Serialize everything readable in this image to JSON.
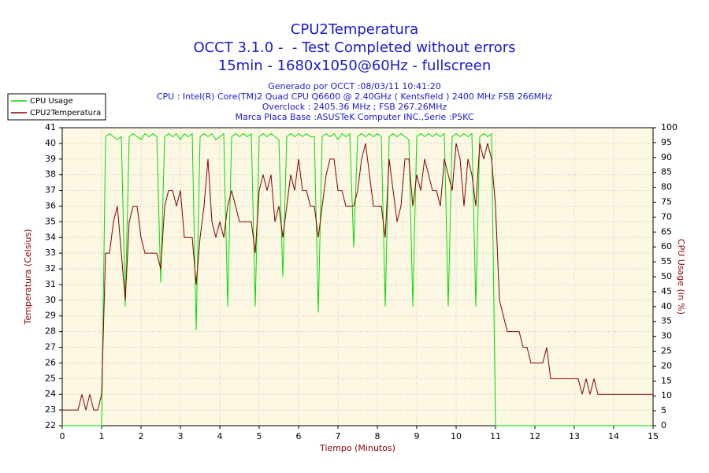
{
  "chart_data": {
    "type": "line",
    "title": [
      "CPU2Temperatura",
      "OCCT 3.1.0 -  - Test Completed without errors",
      "15min - 1680x1050@60Hz - fullscreen"
    ],
    "info": [
      "Generado por OCCT :08/03/11 10:41:20",
      "CPU : Intel(R) Core(TM)2 Quad CPU Q6600 @ 2.40GHz ( Kentsfield ) 2400 MHz FSB 266MHz",
      "Overclock : 2405.36 MHz ; FSB 267.26MHz",
      "Marca Placa Base :ASUSTeK Computer INC.,Serie :P5KC"
    ],
    "x_label": "Tiempo (Minutos)",
    "y_label": "Temperatura (Celsius)",
    "y2_label": "CPU Usage (in %)",
    "x": [
      0,
      0.1,
      0.2,
      0.3,
      0.4,
      0.5,
      0.6,
      0.7,
      0.8,
      0.9,
      1,
      1.1,
      1.2,
      1.3,
      1.4,
      1.5,
      1.6,
      1.7,
      1.8,
      1.9,
      2,
      2.1,
      2.2,
      2.3,
      2.4,
      2.5,
      2.6,
      2.7,
      2.8,
      2.9,
      3,
      3.1,
      3.2,
      3.3,
      3.4,
      3.5,
      3.6,
      3.7,
      3.8,
      3.9,
      4,
      4.1,
      4.2,
      4.3,
      4.4,
      4.5,
      4.6,
      4.7,
      4.8,
      4.9,
      5,
      5.1,
      5.2,
      5.3,
      5.4,
      5.5,
      5.6,
      5.7,
      5.8,
      5.9,
      6,
      6.1,
      6.2,
      6.3,
      6.4,
      6.5,
      6.6,
      6.7,
      6.8,
      6.9,
      7,
      7.1,
      7.2,
      7.3,
      7.4,
      7.5,
      7.6,
      7.7,
      7.8,
      7.9,
      8,
      8.1,
      8.2,
      8.3,
      8.4,
      8.5,
      8.6,
      8.7,
      8.8,
      8.9,
      9,
      9.1,
      9.2,
      9.3,
      9.4,
      9.5,
      9.6,
      9.7,
      9.8,
      9.9,
      10,
      10.1,
      10.2,
      10.3,
      10.4,
      10.5,
      10.6,
      10.7,
      10.8,
      10.9,
      11,
      11.1,
      11.2,
      11.3,
      11.4,
      11.5,
      11.6,
      11.7,
      11.8,
      11.9,
      12,
      12.1,
      12.2,
      12.3,
      12.4,
      12.5,
      12.6,
      12.7,
      12.8,
      12.9,
      13,
      13.1,
      13.2,
      13.3,
      13.4,
      13.5,
      13.6,
      13.7,
      13.8,
      13.9,
      14,
      14.1,
      14.2,
      14.3,
      14.4,
      14.5,
      14.6,
      14.7,
      14.8,
      14.9,
      15
    ],
    "series": [
      {
        "name": "CPU Usage",
        "color": "#00dd00",
        "axis": "y2",
        "values": [
          0,
          0,
          0,
          0,
          0,
          0,
          0,
          0,
          0,
          0,
          0,
          97,
          98,
          97,
          96,
          97,
          40,
          97,
          98,
          97,
          96,
          98,
          97,
          98,
          97,
          48,
          97,
          98,
          97,
          98,
          96,
          98,
          97,
          98,
          32,
          97,
          98,
          97,
          98,
          96,
          97,
          98,
          40,
          97,
          98,
          97,
          98,
          97,
          98,
          40,
          97,
          98,
          97,
          98,
          97,
          96,
          50,
          97,
          98,
          97,
          98,
          97,
          98,
          97,
          97,
          38,
          97,
          98,
          97,
          98,
          96,
          98,
          97,
          98,
          60,
          97,
          98,
          97,
          98,
          97,
          98,
          97,
          40,
          97,
          98,
          97,
          98,
          97,
          96,
          40,
          97,
          98,
          97,
          98,
          97,
          98,
          97,
          98,
          40,
          97,
          98,
          97,
          98,
          97,
          98,
          40,
          97,
          98,
          97,
          98,
          0,
          0,
          0,
          0,
          0,
          0,
          0,
          0,
          0,
          0,
          0,
          0,
          0,
          0,
          0,
          0,
          0,
          0,
          0,
          0,
          0,
          0,
          0,
          0,
          0,
          0,
          0,
          0,
          0,
          0,
          0,
          0,
          0,
          0,
          0,
          0,
          0,
          0,
          0,
          0,
          0
        ]
      },
      {
        "name": "CPU2Temperatura",
        "color": "#800000",
        "axis": "y",
        "values": [
          23,
          23,
          23,
          23,
          23,
          24,
          23,
          24,
          23,
          23,
          24,
          33,
          33,
          35,
          36,
          33,
          30,
          35,
          36,
          36,
          34,
          33,
          33,
          33,
          33,
          32,
          36,
          37,
          37,
          36,
          37,
          34,
          34,
          34,
          31,
          34,
          36,
          39,
          35,
          34,
          35,
          34,
          36,
          37,
          36,
          35,
          35,
          35,
          35,
          33,
          37,
          38,
          37,
          38,
          35,
          36,
          34,
          36,
          38,
          37,
          39,
          37,
          37,
          36,
          36,
          34,
          36,
          38,
          39,
          39,
          37,
          37,
          36,
          36,
          36,
          37,
          39,
          40,
          38,
          36,
          36,
          36,
          34,
          39,
          37,
          35,
          36,
          39,
          39,
          36,
          38,
          37,
          39,
          38,
          37,
          37,
          36,
          39,
          38,
          37,
          40,
          39,
          36,
          39,
          38,
          36,
          40,
          39,
          40,
          39,
          36,
          30,
          29,
          28,
          28,
          28,
          28,
          27,
          27,
          26,
          26,
          26,
          26,
          27,
          25,
          25,
          25,
          25,
          25,
          25,
          25,
          25,
          24,
          25,
          24,
          25,
          24,
          24,
          24,
          24,
          24,
          24,
          24,
          24,
          24,
          24,
          24,
          24,
          24,
          24,
          24
        ]
      }
    ],
    "xlim": [
      0,
      15
    ],
    "xticks": [
      0,
      1,
      2,
      3,
      4,
      5,
      6,
      7,
      8,
      9,
      10,
      11,
      12,
      13,
      14,
      15
    ],
    "ylim": [
      22,
      41
    ],
    "yticks": [
      22,
      23,
      24,
      25,
      26,
      27,
      28,
      29,
      30,
      31,
      32,
      33,
      34,
      35,
      36,
      37,
      38,
      39,
      40,
      41
    ],
    "y2lim": [
      0,
      100
    ],
    "y2ticks": [
      0,
      5,
      10,
      15,
      20,
      25,
      30,
      35,
      40,
      45,
      50,
      55,
      60,
      65,
      70,
      75,
      80,
      85,
      90,
      95,
      100
    ],
    "grid": true,
    "legend": "top-left"
  }
}
